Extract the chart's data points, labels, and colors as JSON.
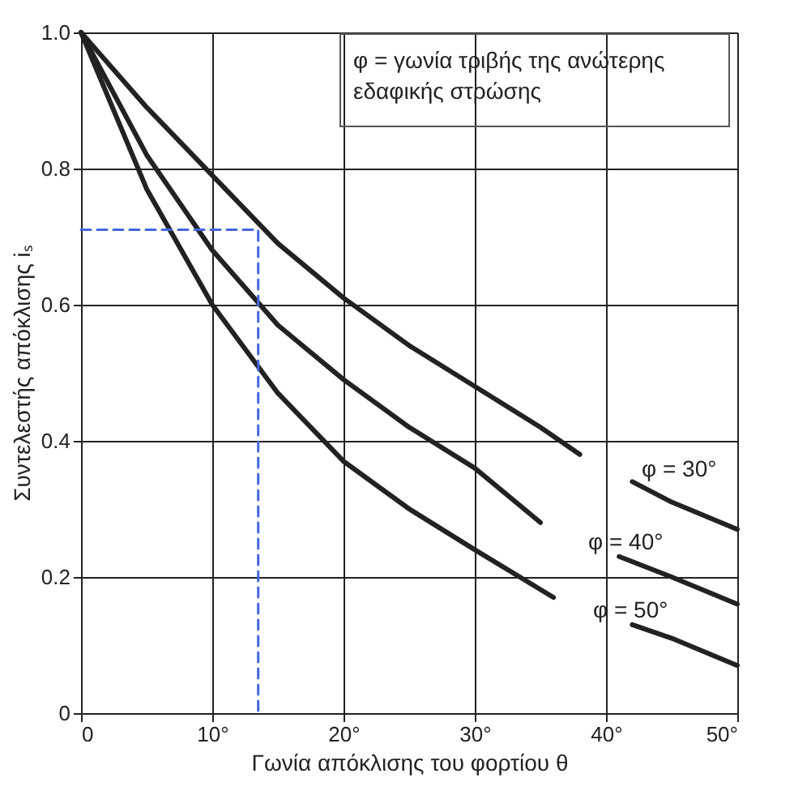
{
  "chart_data": {
    "type": "line",
    "xlabel": "Γωνία απόκλισης του φορτίου θ",
    "ylabel": "Συντελεστής απόκλισης iₛ",
    "xlim": [
      0,
      50
    ],
    "ylim": [
      0,
      1
    ],
    "xticks": [
      0,
      {
        "value": 10,
        "label": "10°"
      },
      {
        "value": 20,
        "label": "20°"
      },
      {
        "value": 30,
        "label": "30°"
      },
      {
        "value": 40,
        "label": "40°"
      },
      {
        "value": 50,
        "label": "50°"
      }
    ],
    "yticks": [
      {
        "value": 0,
        "label": "0"
      },
      0.2,
      0.4,
      0.6,
      0.8,
      {
        "value": 1,
        "label": "1.0"
      }
    ],
    "grid": true,
    "marker": "none",
    "series": [
      {
        "color": "#222222",
        "line_style": "solid",
        "x": [
          0,
          5,
          10,
          15,
          20,
          25,
          30,
          35,
          38,
          40,
          42,
          45,
          50
        ],
        "values": [
          1.0,
          0.89,
          0.79,
          0.69,
          0.61,
          0.54,
          0.48,
          0.42,
          0.38,
          null,
          0.34,
          0.31,
          0.27
        ]
      },
      {
        "color": "#222222",
        "line_style": "solid",
        "x": [
          0,
          5,
          10,
          15,
          20,
          25,
          30,
          35,
          38,
          41,
          45,
          50
        ],
        "values": [
          1.0,
          0.82,
          0.68,
          0.57,
          0.49,
          0.42,
          0.36,
          0.28,
          null,
          0.23,
          0.2,
          0.16
        ]
      },
      {
        "color": "#222222",
        "line_style": "solid",
        "x": [
          0,
          5,
          10,
          15,
          20,
          25,
          30,
          36,
          39,
          42,
          45,
          50
        ],
        "values": [
          1.0,
          0.77,
          0.6,
          0.47,
          0.37,
          0.3,
          0.24,
          0.17,
          null,
          0.13,
          0.11,
          0.07
        ]
      },
      {
        "color": "#4466dd",
        "line_style": "dashed",
        "x": [
          0,
          13.5,
          13.5
        ],
        "values": [
          0.71,
          0.71,
          0
        ]
      }
    ],
    "annotations": [
      "φ = 30°",
      "φ = 40°",
      "φ = 50°",
      "φ = γωνία τριβής της ανώτερης\nεδαφικής στρώσης"
    ]
  }
}
